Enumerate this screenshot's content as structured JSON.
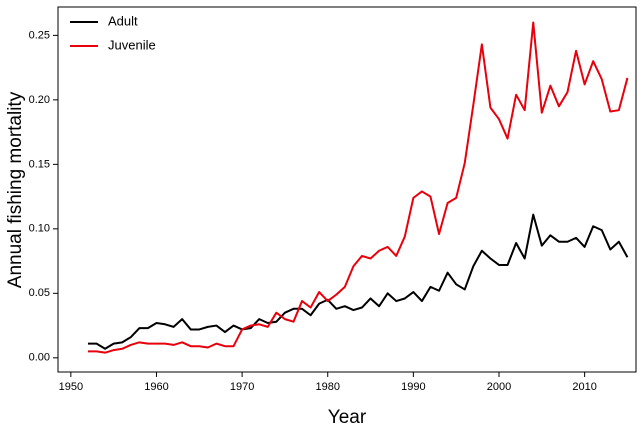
{
  "chart_data": {
    "type": "line",
    "x_label": "Year",
    "y_label": "Annual fishing mortality",
    "x": [
      1952,
      1953,
      1954,
      1955,
      1956,
      1957,
      1958,
      1959,
      1960,
      1961,
      1962,
      1963,
      1964,
      1965,
      1966,
      1967,
      1968,
      1969,
      1970,
      1971,
      1972,
      1973,
      1974,
      1975,
      1976,
      1977,
      1978,
      1979,
      1980,
      1981,
      1982,
      1983,
      1984,
      1985,
      1986,
      1987,
      1988,
      1989,
      1990,
      1991,
      1992,
      1993,
      1994,
      1995,
      1996,
      1997,
      1998,
      1999,
      2000,
      2001,
      2002,
      2003,
      2004,
      2005,
      2006,
      2007,
      2008,
      2009,
      2010,
      2011,
      2012,
      2013,
      2014,
      2015
    ],
    "series": [
      {
        "name": "Adult",
        "color": "#000000",
        "values": [
          0.011,
          0.011,
          0.007,
          0.011,
          0.012,
          0.016,
          0.023,
          0.023,
          0.027,
          0.026,
          0.024,
          0.03,
          0.022,
          0.022,
          0.024,
          0.025,
          0.02,
          0.025,
          0.022,
          0.023,
          0.03,
          0.027,
          0.028,
          0.035,
          0.038,
          0.038,
          0.033,
          0.042,
          0.045,
          0.038,
          0.04,
          0.037,
          0.039,
          0.046,
          0.04,
          0.05,
          0.044,
          0.046,
          0.051,
          0.044,
          0.055,
          0.052,
          0.066,
          0.057,
          0.053,
          0.071,
          0.083,
          0.077,
          0.072,
          0.072,
          0.089,
          0.077,
          0.111,
          0.087,
          0.095,
          0.09,
          0.09,
          0.093,
          0.086,
          0.102,
          0.099,
          0.084,
          0.09,
          0.078
        ]
      },
      {
        "name": "Juvenile",
        "color": "#e8000b",
        "values": [
          0.005,
          0.005,
          0.004,
          0.006,
          0.007,
          0.01,
          0.012,
          0.011,
          0.011,
          0.011,
          0.01,
          0.012,
          0.009,
          0.009,
          0.008,
          0.011,
          0.009,
          0.009,
          0.022,
          0.025,
          0.026,
          0.024,
          0.035,
          0.03,
          0.028,
          0.044,
          0.039,
          0.051,
          0.044,
          0.049,
          0.055,
          0.071,
          0.079,
          0.077,
          0.083,
          0.086,
          0.079,
          0.094,
          0.124,
          0.129,
          0.125,
          0.096,
          0.12,
          0.124,
          0.151,
          0.196,
          0.243,
          0.194,
          0.185,
          0.17,
          0.204,
          0.192,
          0.26,
          0.19,
          0.211,
          0.195,
          0.206,
          0.238,
          0.212,
          0.23,
          0.216,
          0.191,
          0.192,
          0.217
        ]
      }
    ],
    "xlim": [
      1948.5,
      2016
    ],
    "ylim": [
      -0.011,
      0.272
    ],
    "xticks": [
      1950,
      1960,
      1970,
      1980,
      1990,
      2000,
      2010
    ],
    "yticks": [
      {
        "value": 0,
        "label": "0.00"
      },
      {
        "value": 0.05,
        "label": "0.05"
      },
      {
        "value": 0.1,
        "label": "0.10"
      },
      {
        "value": 0.15,
        "label": "0.15"
      },
      {
        "value": 0.2,
        "label": "0.20"
      },
      {
        "value": 0.25,
        "label": "0.25"
      }
    ],
    "legend": "top-left"
  }
}
